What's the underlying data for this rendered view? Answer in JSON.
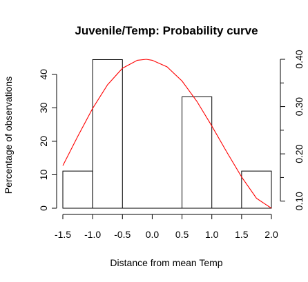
{
  "chart_data": {
    "type": "bar",
    "title": "Juvenile/Temp: Probability curve",
    "xlabel": "Distance from mean Temp",
    "ylabel": "Percentage of observations",
    "xlim": [
      -1.5,
      2.0
    ],
    "ylim": [
      0,
      44.5
    ],
    "x_ticks": [
      "-1.5",
      "-1.0",
      "-0.5",
      "0.0",
      "0.5",
      "1.0",
      "1.5",
      "2.0"
    ],
    "y_ticks": [
      "0",
      "10",
      "20",
      "30",
      "40"
    ],
    "bins": [
      {
        "x0": -1.5,
        "x1": -1.0,
        "value": 11.1
      },
      {
        "x0": -1.0,
        "x1": -0.5,
        "value": 44.4
      },
      {
        "x0": -0.5,
        "x1": 0.0,
        "value": 0
      },
      {
        "x0": 0.0,
        "x1": 0.5,
        "value": 0
      },
      {
        "x0": 0.5,
        "x1": 1.0,
        "value": 33.3
      },
      {
        "x0": 1.0,
        "x1": 1.5,
        "value": 0
      },
      {
        "x0": 1.5,
        "x1": 2.0,
        "value": 11.1
      }
    ],
    "secondary_axis": {
      "ylim": [
        0.085,
        0.4
      ],
      "ticks": [
        "0.10",
        "0.20",
        "0.30",
        "0.40"
      ],
      "minor_ticks": [
        0.15,
        0.25,
        0.35
      ]
    },
    "curve": {
      "color": "#ff0000",
      "x": [
        -1.5,
        -1.25,
        -1.0,
        -0.75,
        -0.5,
        -0.25,
        -0.1,
        0.0,
        0.25,
        0.5,
        0.75,
        1.0,
        1.25,
        1.5,
        1.75,
        2.0
      ],
      "y": [
        0.175,
        0.237,
        0.296,
        0.346,
        0.381,
        0.398,
        0.4,
        0.398,
        0.384,
        0.354,
        0.311,
        0.259,
        0.204,
        0.151,
        0.106,
        0.085
      ]
    }
  }
}
